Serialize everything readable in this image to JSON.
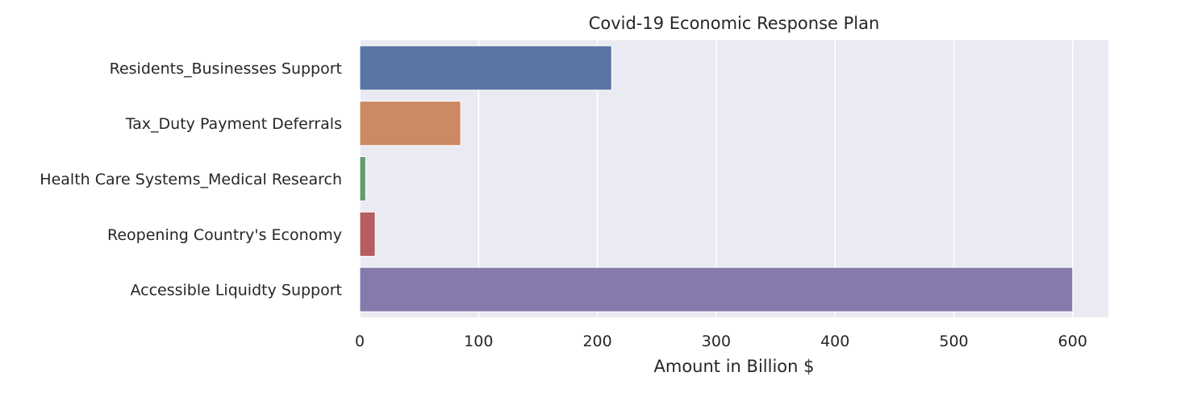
{
  "chart_data": {
    "type": "bar",
    "orientation": "horizontal",
    "title": "Covid-19 Economic Response Plan",
    "xlabel": "Amount in Billion $",
    "ylabel": "",
    "categories": [
      "Residents_Businesses Support",
      "Tax_Duty Payment Deferrals",
      "Health Care Systems_Medical Research",
      "Reopening Country's Economy",
      "Accessible Liquidty Support"
    ],
    "values": [
      212,
      85,
      5,
      13,
      600
    ],
    "colors": [
      "#5875a4",
      "#cc8963",
      "#5f9e6e",
      "#b55d60",
      "#857aab"
    ],
    "xlim": [
      0,
      630
    ],
    "xticks": [
      "0",
      "100",
      "200",
      "300",
      "400",
      "500",
      "600"
    ],
    "grid": true,
    "background": "#eaeaf2",
    "grid_color": "#ffffff"
  }
}
